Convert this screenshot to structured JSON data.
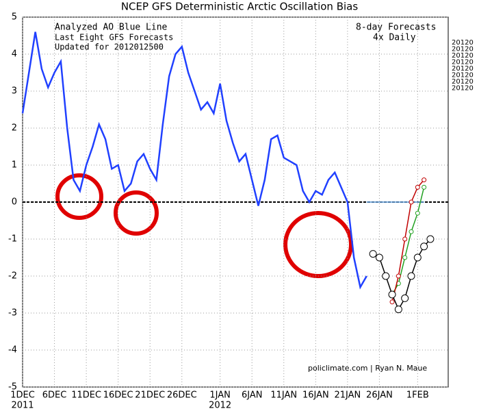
{
  "chart_data": {
    "type": "line",
    "title": "NCEP GFS Deterministic Arctic Oscillation Bias",
    "annotations": {
      "blue_line": "Analyzed AO Blue Line",
      "forecasts": "Last Eight GFS Forecasts",
      "updated": "Updated for 2012012500",
      "range": "8-day Forecasts",
      "freq": "4x Daily",
      "credit": "policlimate.com | Ryan N. Maue"
    },
    "legend": [
      {
        "label": "20120",
        "color": "#e07000"
      },
      {
        "label": "20120",
        "color": "#c00000"
      },
      {
        "label": "20120",
        "color": "#b03000"
      },
      {
        "label": "20120",
        "color": "#80e080"
      },
      {
        "label": "20120",
        "color": "#20a020"
      },
      {
        "label": "20120",
        "color": "#60a0e0"
      },
      {
        "label": "20120",
        "color": "#7050c0"
      },
      {
        "label": "20120",
        "color": "#000000"
      }
    ],
    "xlim": [
      0,
      66.8
    ],
    "ylim": [
      -5,
      5
    ],
    "yticks": [
      -5,
      -4,
      -3,
      -2,
      -1,
      0,
      1,
      2,
      3,
      4,
      5
    ],
    "xticks": [
      {
        "value": 0,
        "label": "1DEC"
      },
      {
        "value": 5,
        "label": "6DEC"
      },
      {
        "value": 10,
        "label": "11DEC"
      },
      {
        "value": 15,
        "label": "16DEC"
      },
      {
        "value": 20,
        "label": "21DEC"
      },
      {
        "value": 25,
        "label": "26DEC"
      },
      {
        "value": 31,
        "label": "1JAN"
      },
      {
        "value": 36,
        "label": "6JAN"
      },
      {
        "value": 41,
        "label": "11JAN"
      },
      {
        "value": 46,
        "label": "16JAN"
      },
      {
        "value": 51,
        "label": "21JAN"
      },
      {
        "value": 56,
        "label": "26JAN"
      },
      {
        "value": 62,
        "label": "1FEB"
      }
    ],
    "year_labels": [
      {
        "value": 0,
        "label": "2011"
      },
      {
        "value": 31,
        "label": "2012"
      }
    ],
    "grid": true,
    "zero_line": 0,
    "series": [
      {
        "name": "Analyzed AO",
        "color": "#2040ff",
        "marker": false,
        "x": [
          0,
          1,
          2,
          3,
          4,
          5,
          6,
          7,
          8,
          9,
          10,
          11,
          12,
          13,
          14,
          15,
          16,
          17,
          18,
          19,
          20,
          21,
          22,
          23,
          24,
          25,
          26,
          27,
          28,
          29,
          30,
          31,
          32,
          33,
          34,
          35,
          36,
          37,
          38,
          39,
          40,
          41,
          42,
          43,
          44,
          45,
          46,
          47,
          48,
          49,
          50,
          51,
          52,
          53,
          54
        ],
        "values": [
          2.4,
          3.5,
          4.6,
          3.6,
          3.1,
          3.5,
          3.8,
          2.0,
          0.6,
          0.3,
          1.0,
          1.5,
          2.1,
          1.7,
          0.9,
          1.0,
          0.3,
          0.5,
          1.1,
          1.3,
          0.9,
          0.6,
          2.1,
          3.4,
          4.0,
          4.2,
          3.5,
          3.0,
          2.5,
          2.7,
          2.4,
          3.2,
          2.2,
          1.6,
          1.1,
          1.3,
          0.6,
          -0.1,
          0.6,
          1.7,
          1.8,
          1.2,
          1.1,
          1.0,
          0.3,
          0.0,
          0.3,
          0.2,
          0.6,
          0.8,
          0.4,
          0.0,
          -1.5,
          -2.3,
          -2.0
        ]
      },
      {
        "color": "#60a0e0",
        "marker": false,
        "x": [
          54,
          63
        ],
        "values": [
          0,
          0
        ]
      },
      {
        "color": "#20a020",
        "marker": true,
        "x": [
          58,
          59,
          60,
          61,
          62,
          63
        ],
        "values": [
          -2.5,
          -2.2,
          -1.5,
          -0.8,
          -0.3,
          0.4
        ]
      },
      {
        "color": "#c00000",
        "marker": true,
        "x": [
          58,
          59,
          60,
          61,
          62,
          63
        ],
        "values": [
          -2.7,
          -2.0,
          -1.0,
          0.0,
          0.4,
          0.6
        ]
      },
      {
        "color": "#000000",
        "marker": true,
        "x": [
          55,
          56,
          57,
          58,
          59,
          60,
          61,
          62,
          63,
          64
        ],
        "values": [
          -1.4,
          -1.5,
          -2.0,
          -2.5,
          -2.9,
          -2.6,
          -2.0,
          -1.5,
          -1.2,
          -1.0
        ]
      }
    ]
  }
}
